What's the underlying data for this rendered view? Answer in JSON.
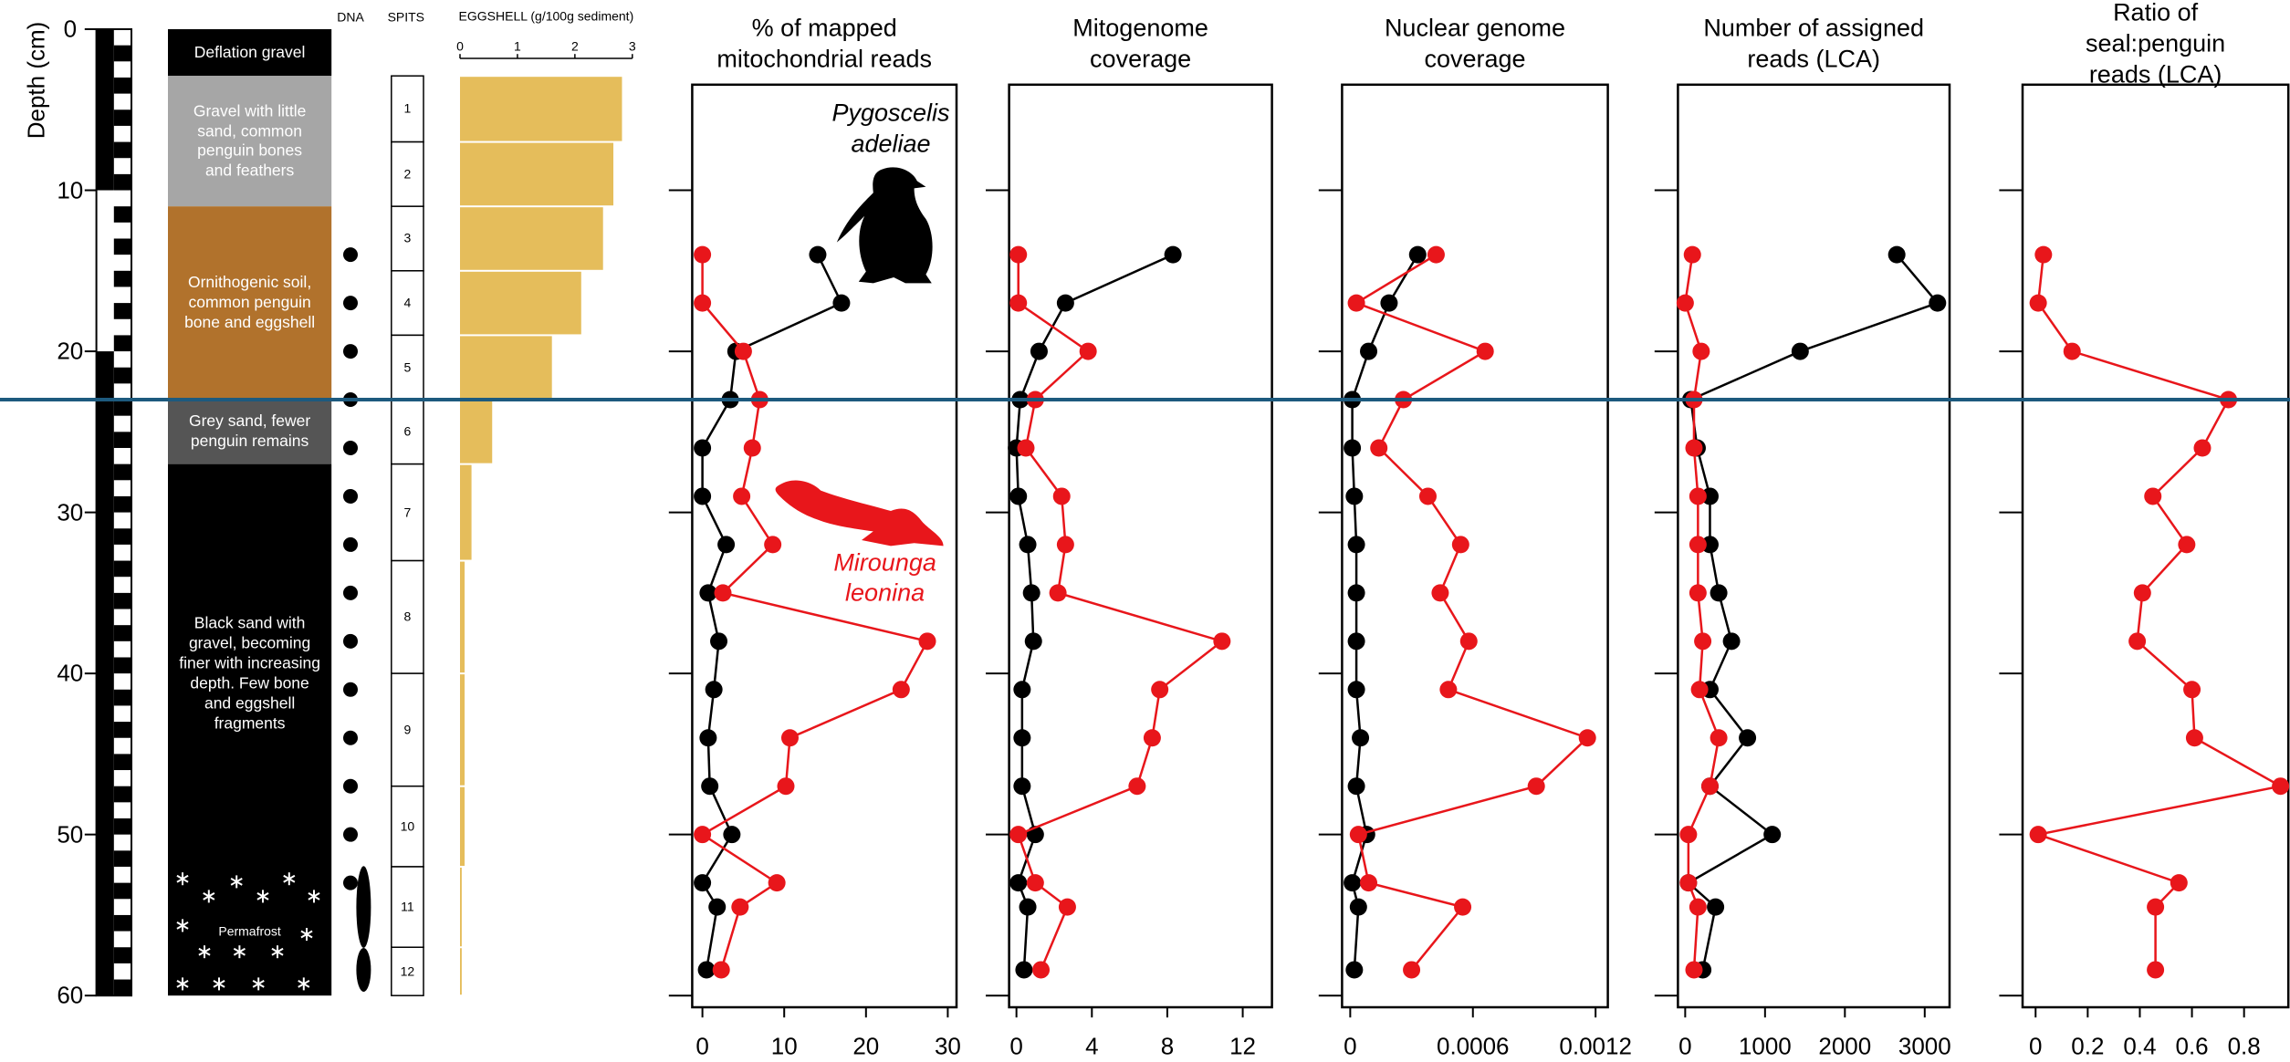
{
  "depth_axis": {
    "label": "Depth (cm)",
    "ylim": [
      0,
      60
    ],
    "yticks": [
      0,
      10,
      20,
      30,
      40,
      50,
      60
    ]
  },
  "stratigraphy": {
    "layers": [
      {
        "text": "Deflation gravel",
        "color": "#000000"
      },
      {
        "text": "Gravel with little\nsand, common\npenguin bones\nand feathers",
        "color": "#a6a6a6"
      },
      {
        "text": "Ornithogenic soil,\ncommon penguin\nbone and eggshell",
        "color": "#b1722c"
      },
      {
        "text": "Grey sand, fewer\npenguin remains",
        "color": "#555555"
      },
      {
        "text": "Black sand with\ngravel, becoming\nfiner with increasing\ndepth. Few bone\nand eggshell\nfragments",
        "color": "#000000"
      }
    ],
    "permafrost": "Permafrost"
  },
  "dna": {
    "label": "DNA",
    "depths": [
      14,
      17,
      20,
      23,
      26,
      29,
      32,
      35,
      38,
      41,
      44,
      47,
      50,
      53,
      54.5,
      58.4
    ]
  },
  "chart_data": [
    {
      "type": "hbar",
      "x_label": "EGGSHELL (g/100g sediment)",
      "y_label": "SPITS",
      "categories": [
        "1",
        "2",
        "3",
        "4",
        "5",
        "6",
        "7",
        "8",
        "9",
        "10",
        "11",
        "12"
      ],
      "bins": [
        2.9,
        7,
        11,
        15,
        19,
        23,
        27,
        33,
        40,
        47,
        52,
        57,
        60
      ],
      "values": [
        2.82,
        2.67,
        2.49,
        2.11,
        1.6,
        0.56,
        0.2,
        0.08,
        0.08,
        0.08,
        0.03,
        0.03
      ],
      "color": "#e5bd5b",
      "xlim": [
        0,
        3
      ],
      "xticks": [
        0,
        1,
        2,
        3
      ]
    },
    {
      "type": "line",
      "title": "% of mapped\nmitochondrial reads",
      "y": [
        14,
        17,
        20,
        23,
        26,
        29,
        32,
        35,
        38,
        41,
        44,
        47,
        50,
        53,
        54.5,
        58.4
      ],
      "xlim": [
        -1.25,
        31.07
      ],
      "xticks": [
        0,
        10,
        20,
        30
      ],
      "series": [
        {
          "name": "Pygoscelis\nadeliae",
          "color": "#000000",
          "values": [
            14.1,
            17,
            4.1,
            3.4,
            0,
            0,
            2.9,
            0.7,
            2,
            1.4,
            0.7,
            0.9,
            3.6,
            0,
            1.8,
            0.5
          ]
        },
        {
          "name": "Mirounga\nleonina",
          "color": "#e8161b",
          "values": [
            0,
            0,
            5,
            7,
            6.1,
            4.8,
            8.6,
            2.5,
            27.5,
            24.3,
            10.7,
            10.2,
            0,
            9.1,
            4.6,
            2.3
          ]
        }
      ]
    },
    {
      "type": "line",
      "title": "Mitogenome\ncoverage",
      "y": [
        14,
        17,
        20,
        23,
        26,
        29,
        32,
        35,
        38,
        41,
        44,
        47,
        50,
        53,
        54.5,
        58.4
      ],
      "xlim": [
        -0.39,
        13.55
      ],
      "xticks": [
        0,
        4,
        8,
        12
      ],
      "series": [
        {
          "color": "#000000",
          "values": [
            8.3,
            2.6,
            1.2,
            0.2,
            0,
            0.1,
            0.6,
            0.8,
            0.9,
            0.3,
            0.3,
            0.3,
            1,
            0.1,
            0.6,
            0.4
          ]
        },
        {
          "color": "#e8161b",
          "values": [
            0.1,
            0.1,
            3.8,
            1,
            0.5,
            2.4,
            2.6,
            2.2,
            10.9,
            7.6,
            7.2,
            6.4,
            0.1,
            1,
            2.7,
            1.3
          ]
        }
      ]
    },
    {
      "type": "line",
      "title": "Nuclear genome\ncoverage",
      "y": [
        14,
        17,
        20,
        23,
        26,
        29,
        32,
        35,
        38,
        41,
        44,
        47,
        50,
        53,
        54.5,
        58.4
      ],
      "xlim": [
        -4e-05,
        0.00126
      ],
      "xticks": [
        0,
        0.0006,
        0.0012
      ],
      "series": [
        {
          "color": "#000000",
          "values": [
            0.00033,
            0.00019,
            9e-05,
            1e-05,
            1e-05,
            2e-05,
            3e-05,
            3e-05,
            3e-05,
            3e-05,
            5e-05,
            3e-05,
            8e-05,
            1e-05,
            4e-05,
            2e-05
          ]
        },
        {
          "color": "#e8161b",
          "values": [
            0.00042,
            3e-05,
            0.00066,
            0.00026,
            0.00014,
            0.00038,
            0.00054,
            0.00044,
            0.00058,
            0.00048,
            0.00116,
            0.00091,
            4e-05,
            9e-05,
            0.00055,
            0.0003
          ]
        }
      ]
    },
    {
      "type": "line",
      "title": "Number of assigned\nreads (LCA)",
      "y": [
        14,
        17,
        20,
        23,
        26,
        29,
        32,
        35,
        38,
        41,
        44,
        47,
        50,
        53,
        54.5,
        58.4
      ],
      "xlim": [
        -91,
        3311
      ],
      "xticks": [
        0,
        1000,
        2000,
        3000
      ],
      "series": [
        {
          "color": "#000000",
          "values": [
            2650,
            3160,
            1440,
            70,
            150,
            310,
            310,
            420,
            580,
            310,
            780,
            310,
            1090,
            40,
            380,
            220
          ]
        },
        {
          "color": "#e8161b",
          "values": [
            90,
            0,
            200,
            110,
            110,
            160,
            160,
            160,
            220,
            180,
            420,
            310,
            40,
            40,
            160,
            110
          ]
        }
      ]
    },
    {
      "type": "line",
      "title": "Ratio of seal:penguin\nreads (LCA)",
      "y": [
        14,
        17,
        20,
        23,
        26,
        29,
        32,
        35,
        38,
        41,
        44,
        47,
        50,
        53,
        54.5,
        58.4
      ],
      "xlim": [
        -0.05,
        0.97
      ],
      "xticks": [
        0,
        0.2,
        0.4,
        0.6,
        0.8
      ],
      "series": [
        {
          "color": "#e8161b",
          "values": [
            0.03,
            0.01,
            0.14,
            0.74,
            0.64,
            0.45,
            0.58,
            0.41,
            0.39,
            0.6,
            0.61,
            0.94,
            0.01,
            0.55,
            0.46,
            0.46
          ]
        }
      ]
    }
  ]
}
